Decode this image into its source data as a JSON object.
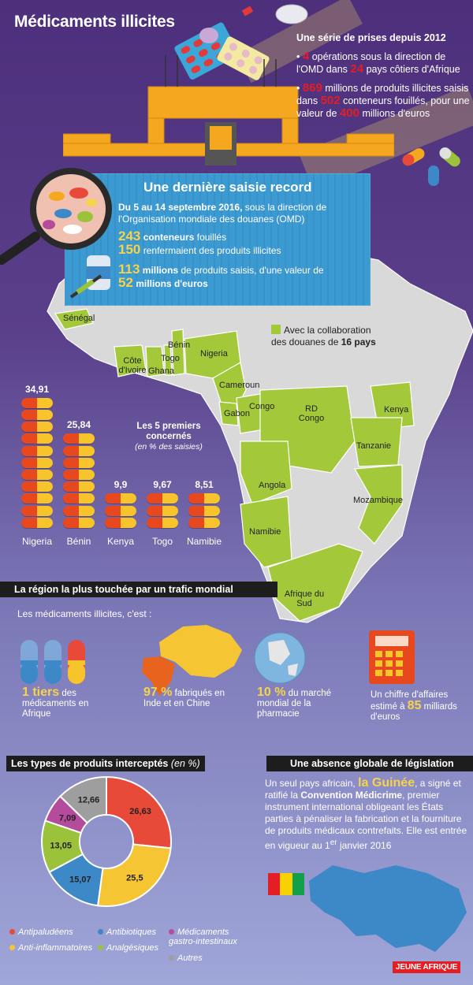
{
  "title": "Médicaments illicites",
  "intro": {
    "heading": "Une série de prises depuis 2012",
    "item1_pre": "•",
    "item1_n1": "4",
    "item1_mid": "opérations sous la direction de l'OMD dans",
    "item1_n2": "24",
    "item1_post": "pays côtiers d'Afrique",
    "item2_pre": "•",
    "item2_n1": "869",
    "item2_mid": "millions de produits illicites saisis dans",
    "item2_n2": "502",
    "item2_mid2": "conteneurs fouillés, pour une valeur de",
    "item2_n3": "400",
    "item2_post": "millions d'euros"
  },
  "record": {
    "title": "Une dernière saisie record",
    "period": "Du 5 au 14 septembre 2016,",
    "period_rest": "sous la direction de l'Organisation mondiale des douanes (OMD)",
    "n1": "243",
    "t1": "conteneurs",
    "t1b": "fouillés",
    "n2": "150",
    "t2": "renfermaient des produits illicites",
    "n3": "113",
    "t3a": "millions",
    "t3b": "de produits saisis, d'une valeur de",
    "n4": "52",
    "t4": "millions d'euros"
  },
  "map": {
    "legend_line1": "Avec la collaboration",
    "legend_line2": "des douanes de",
    "legend_count": "16 pays",
    "countries": {
      "senegal": "Sénégal",
      "benin": "Bénin",
      "togo": "Togo",
      "nigeria": "Nigeria",
      "cote": "Côte d'Ivoire",
      "ghana": "Ghana",
      "cameroun": "Cameroun",
      "congo": "Congo",
      "gabon": "Gabon",
      "rdc": "RD Congo",
      "kenya": "Kenya",
      "tanzanie": "Tanzanie",
      "angola": "Angola",
      "mozambique": "Mozambique",
      "namibie": "Namibie",
      "afsud": "Afrique du Sud"
    },
    "green": "#a3c93a",
    "grey": "#d9d9d9"
  },
  "top5": {
    "title": "Les 5 premiers concernés",
    "subtitle": "(en % des saisies)",
    "bars": [
      {
        "label": "Nigeria",
        "value": "34,91",
        "v": 34.91
      },
      {
        "label": "Bénin",
        "value": "25,84",
        "v": 25.84
      },
      {
        "label": "Kenya",
        "value": "9,9",
        "v": 9.9
      },
      {
        "label": "Togo",
        "value": "9,67",
        "v": 9.67
      },
      {
        "label": "Namibie",
        "value": "8,51",
        "v": 8.51
      }
    ]
  },
  "section1": {
    "title": "La région la plus touchée par un trafic mondial",
    "lead": "Les médicaments illicites, c'est :",
    "s1_big": "1 tiers",
    "s1_rest": "des médicaments en Afrique",
    "s2_big": "97 %",
    "s2_rest": "fabriqués en Inde et en Chine",
    "s3_big": "10 %",
    "s3_rest": "du marché mondial de la pharmacie",
    "s4_pre": "Un chiffre d'affaires estimé à",
    "s4_big": "85",
    "s4_rest": "milliards d'euros"
  },
  "section2": {
    "title": "Les types de produits interceptés",
    "unit": "(en %)"
  },
  "section3": {
    "title": "Une absence globale de législation",
    "p1": "Un seul pays africain,",
    "guinea": "la Guinée",
    "p2": ", a signé et ratifié la",
    "conv": "Convention Médicrime",
    "p3": ", premier instrument international obligeant les États parties à pénaliser la fabrication et la fourniture de produits médicaux contrefaits. Elle est entrée en vigueur au 1",
    "sup": "er",
    "p4": "janvier 2016"
  },
  "chart_data": {
    "type": "pie",
    "title": "Les types de produits interceptés",
    "unit": "%",
    "categories": [
      "Antipaludéens",
      "Anti-inflammatoires",
      "Antibiotiques",
      "Analgésiques",
      "Médicaments gastro-intestinaux",
      "Autres"
    ],
    "values": [
      26.63,
      25.5,
      15.07,
      13.05,
      7.09,
      12.66
    ],
    "labels": [
      "26,63",
      "25,5",
      "15,07",
      "13,05",
      "7,09",
      "12,66"
    ],
    "colors": [
      "#e84a3a",
      "#f6c534",
      "#3d88c6",
      "#9bc23b",
      "#b54c9b",
      "#9e9e9e"
    ],
    "style": "donut"
  },
  "brand": "JEUNE AFRIQUE"
}
